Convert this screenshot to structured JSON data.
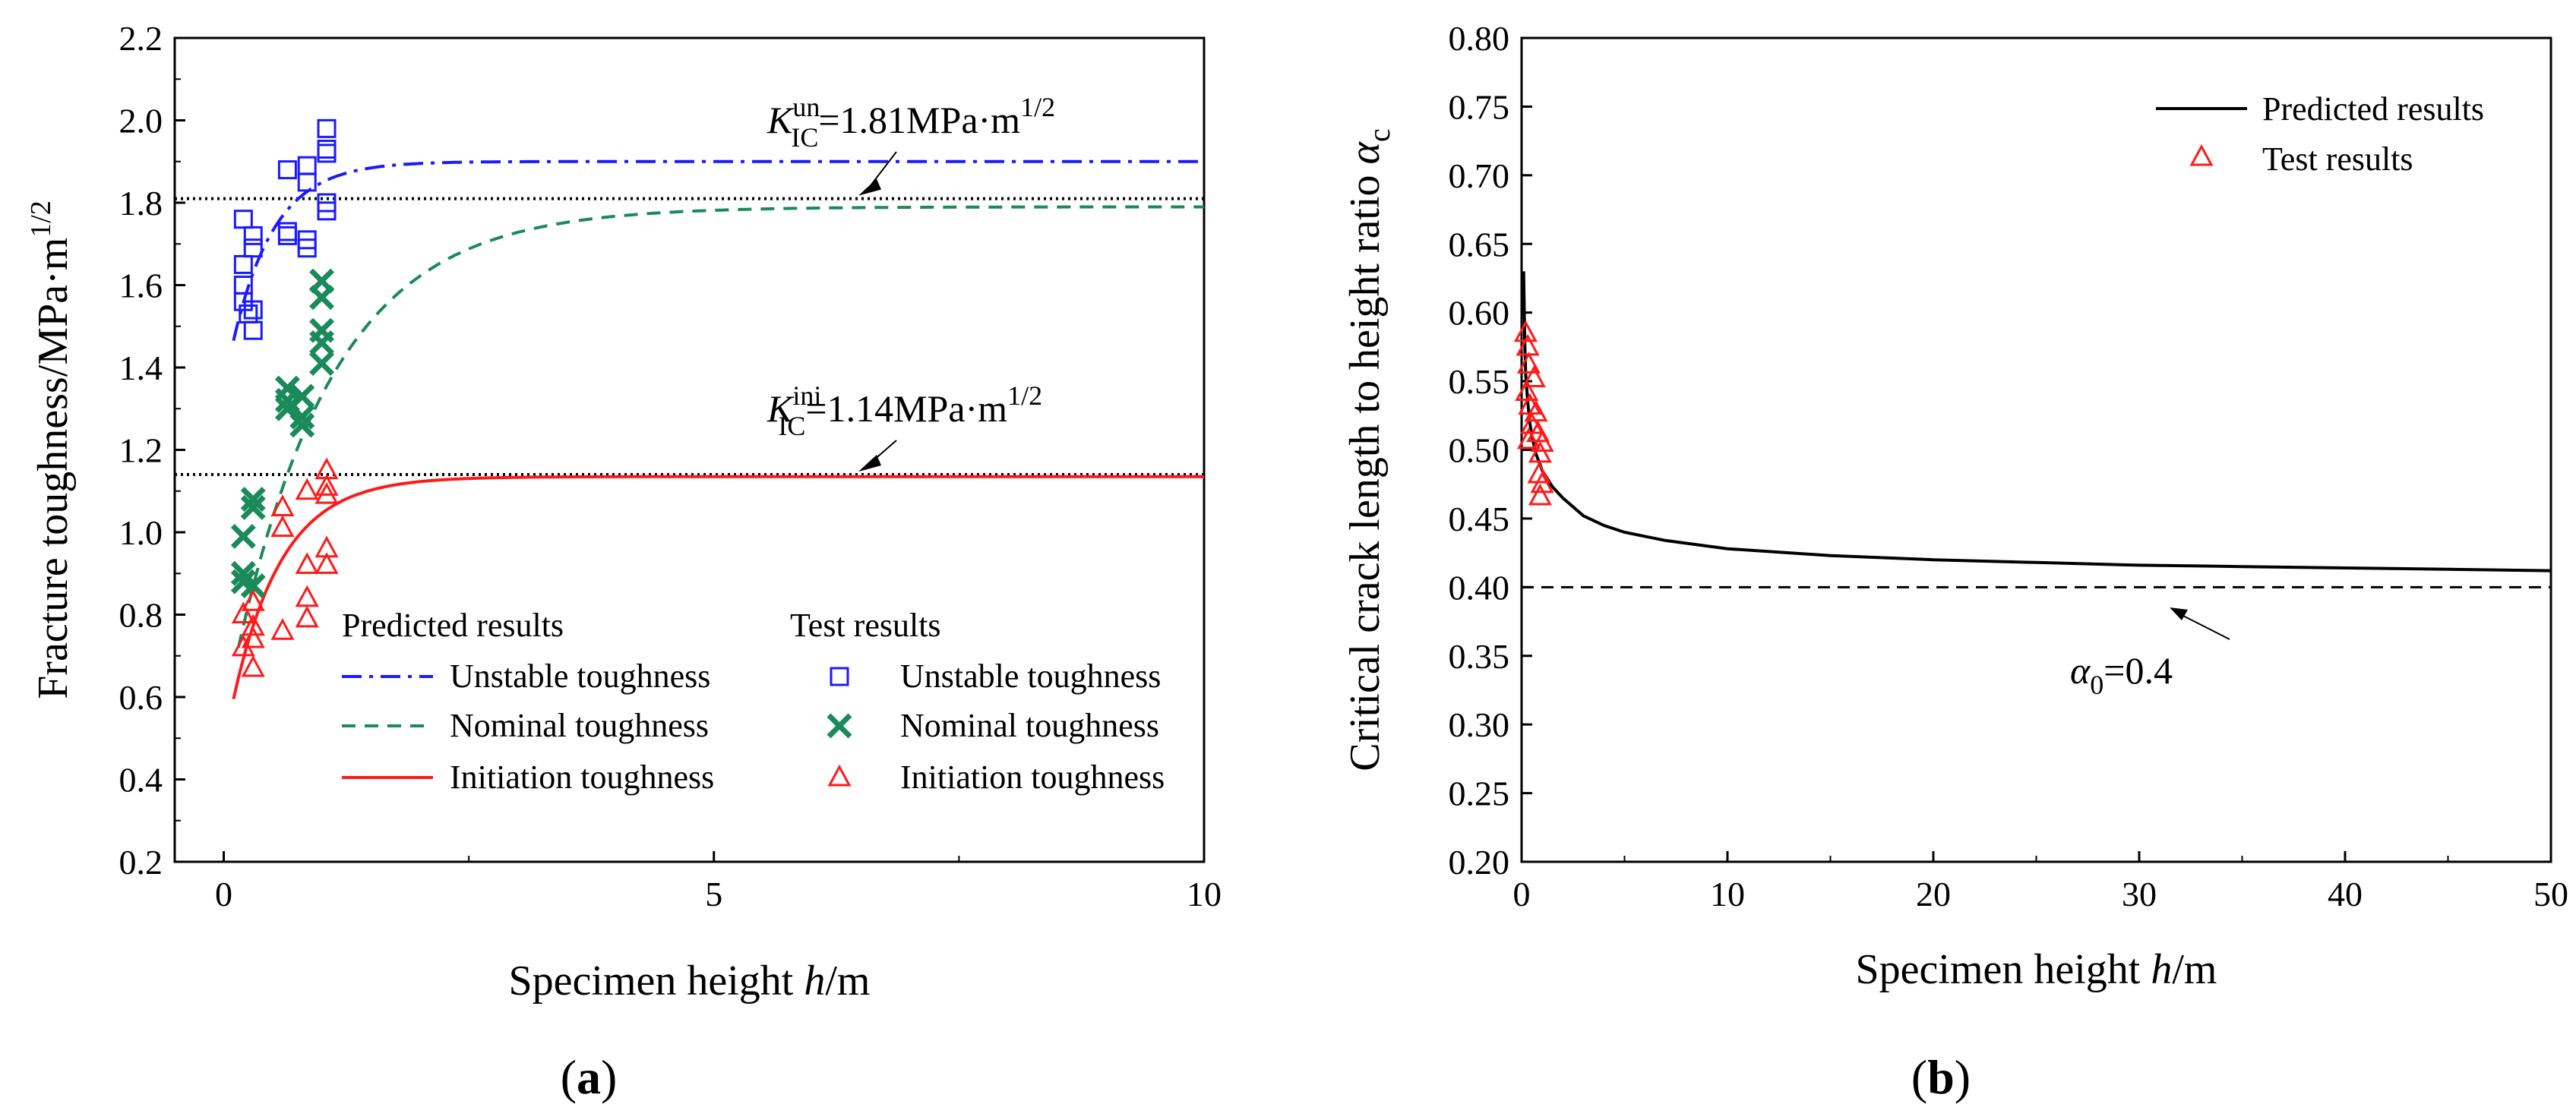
{
  "chart_data": [
    {
      "panel": "(a)",
      "type": "line+scatter",
      "xlabel": "Specimen height h/m",
      "ylabel": "Fracture toughness/MPa·m^1/2",
      "xlim": [
        -0.5,
        10
      ],
      "ylim": [
        0.2,
        2.2
      ],
      "x_ticks": [
        0,
        5,
        10
      ],
      "y_ticks": [
        0.2,
        0.4,
        0.6,
        0.8,
        1.0,
        1.2,
        1.4,
        1.6,
        1.8,
        2.0,
        2.2
      ],
      "colors": {
        "unstable": "#1a1aff",
        "nominal": "#1a8a5a",
        "initiation": "#ff1a1a",
        "reference": "#000000"
      },
      "reference_lines": [
        {
          "name": "K_IC^un",
          "sym": "K",
          "sup": "un",
          "sub": "IC",
          "value_text": "=1.81MPa·m",
          "exp": "1/2",
          "y": 1.81
        },
        {
          "name": "K_IC^ini",
          "sym": "K",
          "sup": "ini",
          "sub": "IC",
          "value_text": "=1.14MPa·m",
          "exp": "1/2",
          "y": 1.14
        }
      ],
      "legend": {
        "predicted_title": "Predicted results",
        "test_title": "Test results",
        "predicted": [
          "Unstable toughness",
          "Nominal toughness",
          "Initiation toughness"
        ],
        "test": [
          "Unstable toughness",
          "Nominal toughness",
          "Initiation toughness"
        ]
      },
      "series": [
        {
          "name": "Unstable toughness (predicted)",
          "kind": "line",
          "style": "dashdot",
          "color": "#1a1aff",
          "model": {
            "Kinf": 1.9,
            "Kmin": 1.465,
            "x0": 0.1,
            "tau": 0.42
          }
        },
        {
          "name": "Nominal toughness (predicted)",
          "kind": "line",
          "style": "dashed",
          "color": "#1a8a5a",
          "model": {
            "Kinf": 1.79,
            "Kmin": 0.72,
            "x0": 0.15,
            "tau": 1.0
          }
        },
        {
          "name": "Initiation toughness (predicted)",
          "kind": "line",
          "style": "solid",
          "color": "#ff1a1a",
          "model": {
            "Kinf": 1.135,
            "Kmin": 0.595,
            "x0": 0.1,
            "tau": 0.5
          }
        },
        {
          "name": "Unstable toughness (test)",
          "kind": "scatter",
          "marker": "square",
          "color": "#1a1aff",
          "points": [
            [
              0.2,
              1.76
            ],
            [
              0.2,
              1.65
            ],
            [
              0.2,
              1.6
            ],
            [
              0.2,
              1.56
            ],
            [
              0.25,
              1.53
            ],
            [
              0.3,
              1.72
            ],
            [
              0.3,
              1.69
            ],
            [
              0.3,
              1.54
            ],
            [
              0.3,
              1.49
            ],
            [
              0.65,
              1.88
            ],
            [
              0.65,
              1.73
            ],
            [
              0.65,
              1.72
            ],
            [
              0.85,
              1.89
            ],
            [
              0.85,
              1.85
            ],
            [
              0.85,
              1.71
            ],
            [
              0.85,
              1.69
            ],
            [
              1.05,
              1.98
            ],
            [
              1.05,
              1.93
            ],
            [
              1.05,
              1.92
            ],
            [
              1.05,
              1.8
            ],
            [
              1.05,
              1.78
            ]
          ]
        },
        {
          "name": "Nominal toughness (test)",
          "kind": "scatter",
          "marker": "x",
          "color": "#1a8a5a",
          "points": [
            [
              0.2,
              0.99
            ],
            [
              0.2,
              0.9
            ],
            [
              0.2,
              0.88
            ],
            [
              0.3,
              1.08
            ],
            [
              0.3,
              1.06
            ],
            [
              0.3,
              0.87
            ],
            [
              0.65,
              1.35
            ],
            [
              0.65,
              1.32
            ],
            [
              0.65,
              1.3
            ],
            [
              0.8,
              1.33
            ],
            [
              0.8,
              1.28
            ],
            [
              0.8,
              1.26
            ],
            [
              1.0,
              1.61
            ],
            [
              1.0,
              1.57
            ],
            [
              1.0,
              1.49
            ],
            [
              1.0,
              1.46
            ],
            [
              1.0,
              1.41
            ]
          ]
        },
        {
          "name": "Initiation toughness (test)",
          "kind": "scatter",
          "marker": "triangle",
          "color": "#ff1a1a",
          "points": [
            [
              0.2,
              0.8
            ],
            [
              0.2,
              0.72
            ],
            [
              0.3,
              0.83
            ],
            [
              0.3,
              0.77
            ],
            [
              0.3,
              0.74
            ],
            [
              0.3,
              0.67
            ],
            [
              0.6,
              1.06
            ],
            [
              0.6,
              1.01
            ],
            [
              0.6,
              0.76
            ],
            [
              0.85,
              1.1
            ],
            [
              0.85,
              0.92
            ],
            [
              0.85,
              0.84
            ],
            [
              0.85,
              0.79
            ],
            [
              1.05,
              1.15
            ],
            [
              1.05,
              1.11
            ],
            [
              1.05,
              1.09
            ],
            [
              1.05,
              0.96
            ],
            [
              1.05,
              0.92
            ]
          ]
        }
      ]
    },
    {
      "panel": "(b)",
      "type": "line+scatter",
      "xlabel": "Specimen height h/m",
      "ylabel": "Critical crack length to height ratio α_c",
      "xlim": [
        0,
        50
      ],
      "ylim": [
        0.2,
        0.8
      ],
      "x_ticks": [
        0,
        10,
        20,
        30,
        40,
        50
      ],
      "y_ticks": [
        0.2,
        0.25,
        0.3,
        0.35,
        0.4,
        0.45,
        0.5,
        0.55,
        0.6,
        0.65,
        0.7,
        0.75,
        0.8
      ],
      "reference_line": {
        "y": 0.4,
        "label_sym": "α",
        "label_sub": "0",
        "label_value": "=0.4"
      },
      "legend": [
        "Predicted results",
        "Test results"
      ],
      "series": [
        {
          "name": "Predicted results",
          "kind": "line",
          "color": "#000000",
          "points": [
            [
              0.1,
              0.63
            ],
            [
              0.15,
              0.58
            ],
            [
              0.2,
              0.555
            ],
            [
              0.3,
              0.535
            ],
            [
              0.4,
              0.52
            ],
            [
              0.5,
              0.51
            ],
            [
              0.7,
              0.497
            ],
            [
              1,
              0.485
            ],
            [
              1.5,
              0.473
            ],
            [
              2,
              0.465
            ],
            [
              3,
              0.452
            ],
            [
              4,
              0.445
            ],
            [
              5,
              0.44
            ],
            [
              7,
              0.434
            ],
            [
              10,
              0.428
            ],
            [
              15,
              0.423
            ],
            [
              20,
              0.42
            ],
            [
              25,
              0.418
            ],
            [
              30,
              0.416
            ],
            [
              35,
              0.415
            ],
            [
              40,
              0.414
            ],
            [
              45,
              0.413
            ],
            [
              50,
              0.412
            ]
          ]
        },
        {
          "name": "Test results",
          "kind": "scatter",
          "marker": "triangle",
          "color": "#ff1a1a",
          "points": [
            [
              0.2,
              0.585
            ],
            [
              0.3,
              0.575
            ],
            [
              0.35,
              0.562
            ],
            [
              0.6,
              0.552
            ],
            [
              0.25,
              0.542
            ],
            [
              0.4,
              0.532
            ],
            [
              0.7,
              0.527
            ],
            [
              0.5,
              0.518
            ],
            [
              0.8,
              0.512
            ],
            [
              0.35,
              0.507
            ],
            [
              1.0,
              0.505
            ],
            [
              0.9,
              0.497
            ],
            [
              0.85,
              0.482
            ],
            [
              1.0,
              0.475
            ],
            [
              0.9,
              0.466
            ]
          ]
        }
      ]
    }
  ]
}
